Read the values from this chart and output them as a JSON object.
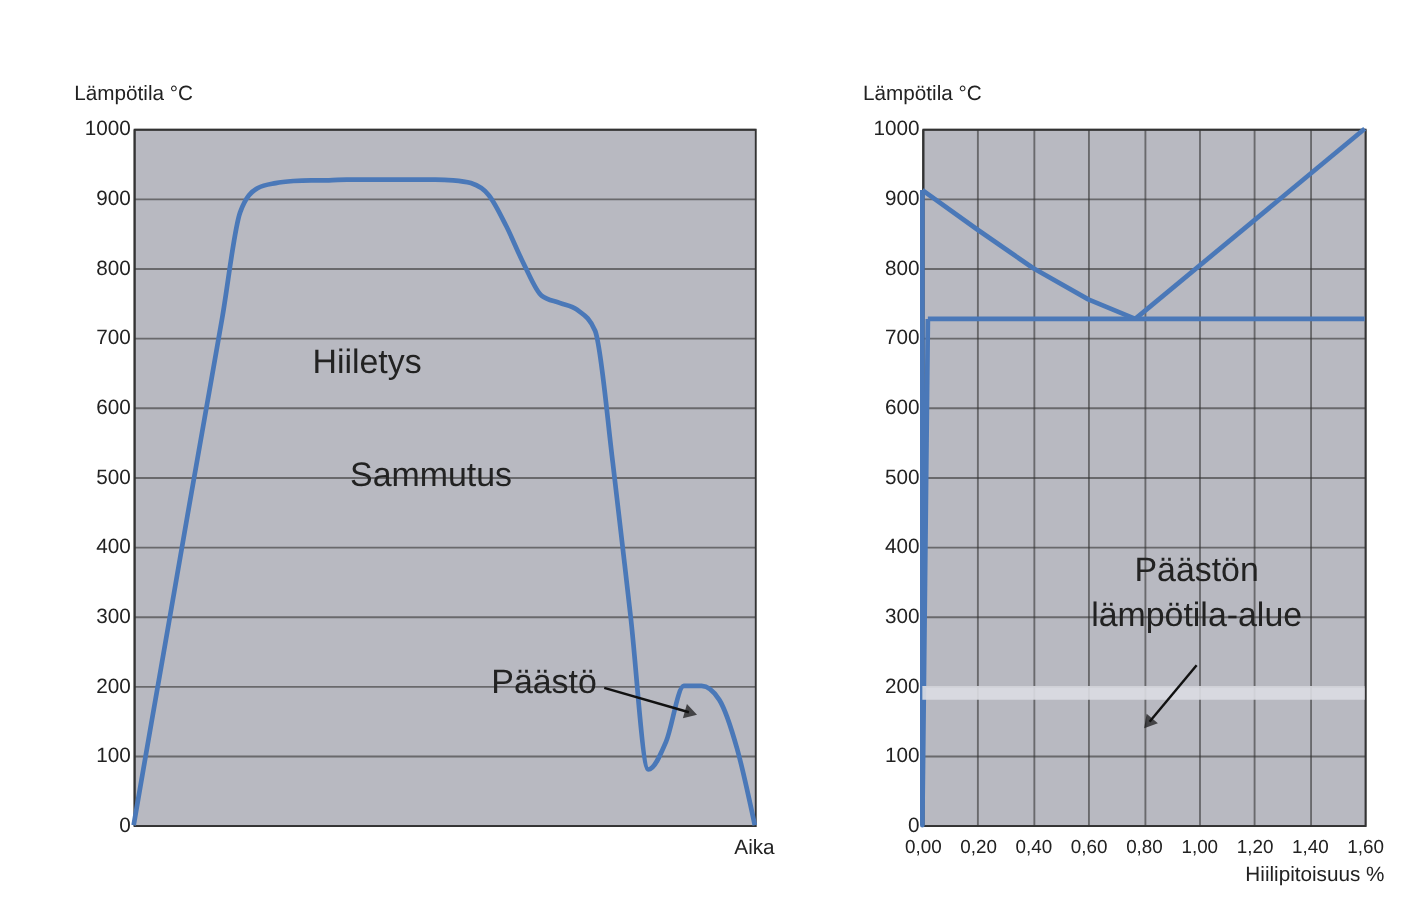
{
  "chart_data": [
    {
      "type": "line",
      "xlabel": "Aika",
      "ylabel": "Lämpötila °C",
      "categories": [
        null,
        null,
        null,
        null,
        null,
        null,
        null,
        null,
        null,
        null,
        null,
        null,
        null,
        null,
        null,
        null,
        null,
        null,
        null,
        null,
        null,
        null,
        null,
        null,
        null,
        null,
        null,
        null,
        null,
        null,
        null,
        null,
        null,
        null,
        null,
        null
      ],
      "series": [
        {
          "color": "#4a78b8",
          "values": [
            0,
            147,
            293,
            440,
            585,
            730,
            880,
            915,
            922,
            925,
            926,
            926,
            927,
            927,
            927,
            927,
            927,
            927,
            926,
            922,
            905,
            860,
            805,
            760,
            750,
            740,
            710,
            520,
            300,
            80,
            120,
            200,
            200,
            180,
            110,
            0
          ]
        }
      ],
      "ylim": [
        0,
        1000
      ],
      "yticks": [
        0,
        100,
        200,
        300,
        400,
        500,
        600,
        700,
        800,
        900,
        1000
      ],
      "grid": "y",
      "tick_labels": "y",
      "annotations": [
        "Hiiletys",
        "Sammutus",
        "Päästö"
      ]
    },
    {
      "type": "line",
      "xlabel": "Hiilipitoisuus %",
      "ylabel": "Lämpötila °C",
      "series": [
        {
          "color": "#4a78b8",
          "x": [
            0,
            0.02,
            0
          ],
          "values": [
            912,
            727,
            0
          ]
        },
        {
          "color": "#4a78b8",
          "x": [
            0,
            0.2,
            0.4,
            0.6,
            0.77
          ],
          "values": [
            912,
            855,
            800,
            755,
            727
          ]
        },
        {
          "color": "#4a78b8",
          "x": [
            0.77,
            1.6
          ],
          "values": [
            727,
            1000
          ]
        },
        {
          "color": "#4a78b8",
          "x": [
            0.02,
            1.6
          ],
          "values": [
            727,
            727
          ]
        }
      ],
      "xlim": [
        0,
        1.6
      ],
      "xticks": [
        {
          "value": 0,
          "label": "0,00"
        },
        {
          "value": 0.2,
          "label": "0,20"
        },
        {
          "value": 0.4,
          "label": "0,40"
        },
        {
          "value": 0.6,
          "label": "0,60"
        },
        {
          "value": 0.8,
          "label": "0,80"
        },
        {
          "value": 1,
          "label": "1,00"
        },
        {
          "value": 1.2,
          "label": "1,20"
        },
        {
          "value": 1.4,
          "label": "1,40"
        },
        {
          "value": 1.6,
          "label": "1,60"
        }
      ],
      "ylim": [
        0,
        1000
      ],
      "yticks": [
        0,
        100,
        200,
        300,
        400,
        500,
        600,
        700,
        800,
        900,
        1000
      ],
      "grid": true,
      "bands": [
        {
          "axis": "y",
          "from": 180,
          "to": 200,
          "label": "Päästön lämpötila-alue",
          "color": "#dcdde3"
        }
      ]
    }
  ]
}
